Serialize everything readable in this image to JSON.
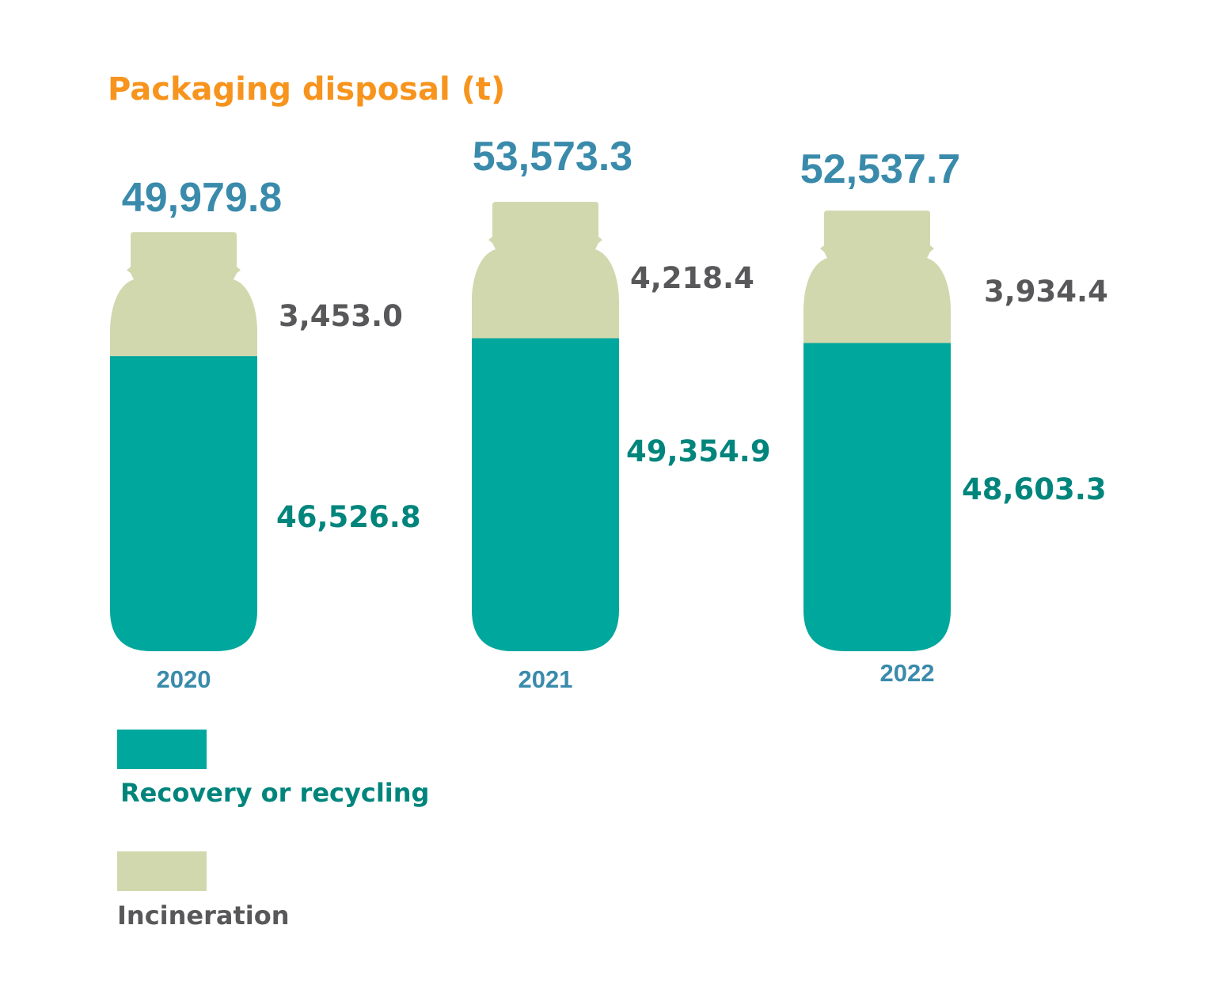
{
  "chart_data": {
    "type": "bar",
    "stacked": true,
    "title": "Packaging disposal (t)",
    "categories": [
      "2020",
      "2021",
      "2022"
    ],
    "totals": [
      49979.8,
      53573.3,
      52537.7
    ],
    "totals_labels": [
      "49,979.8",
      "53,573.3",
      "52,537.7"
    ],
    "series": [
      {
        "name": "Recovery or recycling",
        "values": [
          46526.8,
          49354.9,
          48603.3
        ],
        "labels": [
          "46,526.8",
          "49,354.9",
          "48,603.3"
        ],
        "color": "#00a79d",
        "label_color": "#00857c"
      },
      {
        "name": "Incineration",
        "values": [
          3453.0,
          4218.4,
          3934.4
        ],
        "labels": [
          "3,453.0",
          "4,218.4",
          "3,934.4"
        ],
        "color": "#d1d8ad",
        "label_color": "#58585a"
      }
    ],
    "legend_position": "bottom-left",
    "grid": false
  },
  "colors": {
    "title": "#f7941d",
    "total_label": "#3a8bab",
    "year_label": "#3a8bab"
  },
  "icons": {
    "bar_shape": "bottle-icon"
  }
}
